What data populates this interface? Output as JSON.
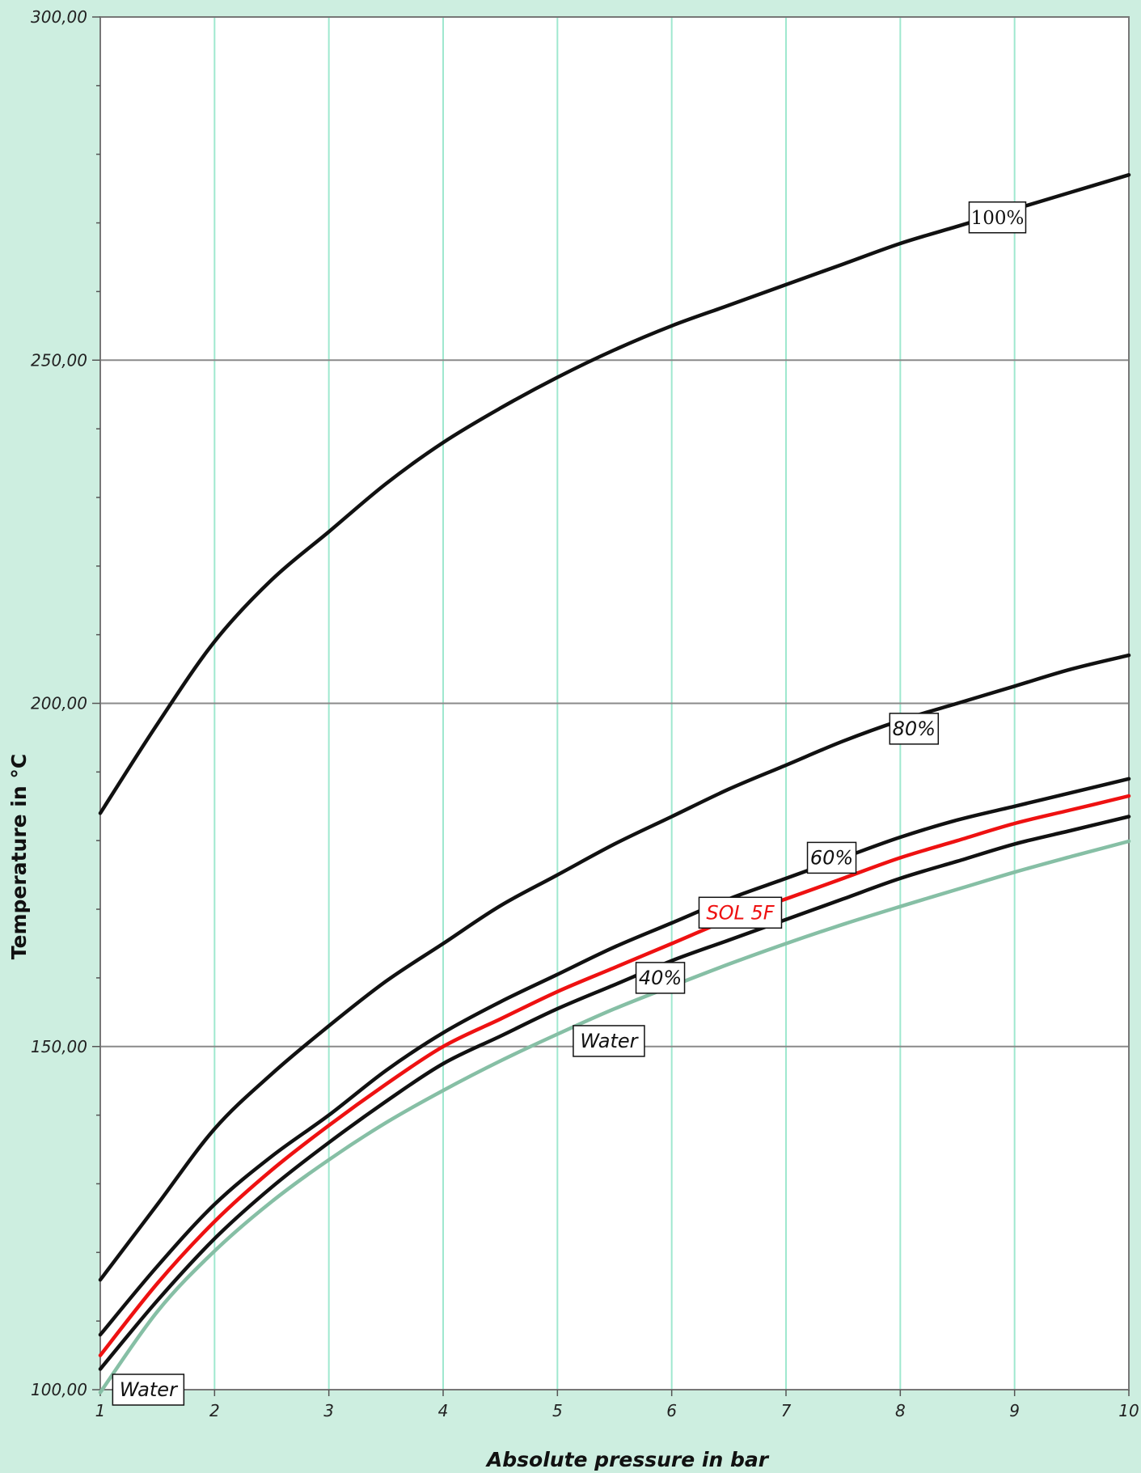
{
  "chart_data": {
    "type": "line",
    "title": "",
    "xlabel": "Absolute pressure in bar",
    "ylabel": "Temperature in °C",
    "xlim": [
      1,
      10
    ],
    "ylim": [
      100,
      300
    ],
    "x_ticks": [
      "1",
      "2",
      "3",
      "4",
      "5",
      "6",
      "7",
      "8",
      "9",
      "10"
    ],
    "y_ticks": [
      {
        "value": 100,
        "label": "100,00"
      },
      {
        "value": 150,
        "label": "150,00"
      },
      {
        "value": 200,
        "label": "200,00"
      },
      {
        "value": 250,
        "label": "250,00"
      },
      {
        "value": 300,
        "label": "300,00"
      }
    ],
    "grid": true,
    "x": [
      1,
      1.5,
      2,
      2.5,
      3,
      3.5,
      4,
      4.5,
      5,
      5.5,
      6,
      6.5,
      7,
      7.5,
      8,
      8.5,
      9,
      9.5,
      10
    ],
    "series": [
      {
        "name": "100%",
        "color": "#111111",
        "label_x": 8.85,
        "label_y": 270.8,
        "values": [
          184,
          197,
          209,
          218,
          225,
          232,
          238,
          243,
          247.5,
          251.5,
          255,
          258,
          261,
          264,
          267,
          269.5,
          272,
          274.5,
          277
        ]
      },
      {
        "name": "80%",
        "color": "#111111",
        "label_x": 8.12,
        "label_y": 196.3,
        "values": [
          116,
          127,
          138,
          146,
          153,
          159.5,
          165,
          170.5,
          175,
          179.5,
          183.5,
          187.5,
          191,
          194.5,
          197.5,
          200,
          202.5,
          205,
          207
        ]
      },
      {
        "name": "60%",
        "color": "#111111",
        "label_x": 7.4,
        "label_y": 177.5,
        "values": [
          108,
          118,
          127,
          134,
          140,
          146.5,
          152,
          156.5,
          160.5,
          164.5,
          168,
          171.5,
          174.5,
          177.5,
          180.5,
          183,
          185,
          187,
          189
        ]
      },
      {
        "name": "SOL 5F",
        "color": "#ee1111",
        "label_x": 6.6,
        "label_y": 169.5,
        "values": [
          105,
          115.5,
          124.5,
          132,
          138.5,
          144.5,
          150,
          154,
          158,
          161.5,
          165,
          168.5,
          171.5,
          174.5,
          177.5,
          180,
          182.5,
          184.5,
          186.5
        ]
      },
      {
        "name": "40%",
        "color": "#111111",
        "label_x": 5.9,
        "label_y": 160,
        "values": [
          103,
          113,
          122,
          129.5,
          136,
          142,
          147.5,
          151.5,
          155.5,
          159,
          162.5,
          165.5,
          168.5,
          171.5,
          174.5,
          177,
          179.5,
          181.5,
          183.5
        ]
      },
      {
        "name": "Water",
        "color": "#86bfa5",
        "label_x": 5.45,
        "label_y": 150.8,
        "values": [
          99.6,
          111.4,
          120.2,
          127.4,
          133.5,
          138.9,
          143.6,
          147.9,
          151.8,
          155.5,
          158.8,
          162.0,
          165.0,
          167.8,
          170.4,
          172.9,
          175.4,
          177.7,
          179.9
        ]
      }
    ],
    "extra_labels": [
      {
        "text": "Water",
        "x": 1.42,
        "y": 100
      }
    ]
  }
}
